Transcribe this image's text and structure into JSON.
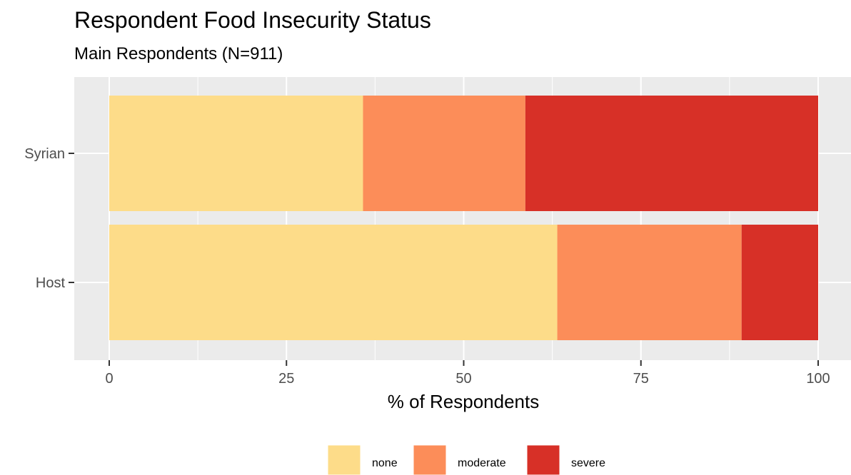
{
  "chart_data": {
    "type": "bar",
    "orientation": "horizontal",
    "stacked": true,
    "title": "Respondent Food Insecurity Status",
    "subtitle": "Main Respondents (N=911)",
    "xlabel": "% of Respondents",
    "ylabel": "",
    "xlim": [
      0,
      100
    ],
    "xticks": [
      0,
      25,
      50,
      75,
      100
    ],
    "categories": [
      "Syrian",
      "Host"
    ],
    "series": [
      {
        "name": "none",
        "color": "#fddc89",
        "values": [
          35.8,
          63.2
        ]
      },
      {
        "name": "moderate",
        "color": "#fc8d59",
        "values": [
          22.9,
          26.0
        ]
      },
      {
        "name": "severe",
        "color": "#d73027",
        "values": [
          41.3,
          10.8
        ]
      }
    ],
    "grid": true,
    "legend_position": "bottom",
    "panel_background": "#ebebeb"
  }
}
